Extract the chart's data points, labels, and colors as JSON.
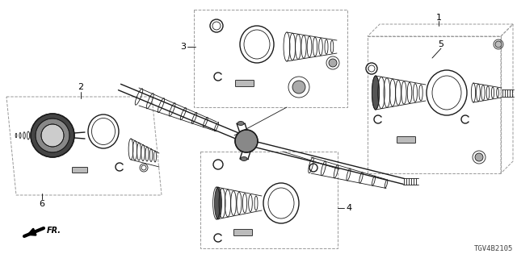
{
  "bg_color": "#ffffff",
  "fig_width": 6.4,
  "fig_height": 3.2,
  "dpi": 100,
  "diagram_id": "TGV4B2105",
  "fr_label": "FR.",
  "line_color": "#1a1a1a",
  "dash_color": "#999999",
  "lw_main": 1.0,
  "lw_thin": 0.6,
  "lw_thick": 1.5
}
